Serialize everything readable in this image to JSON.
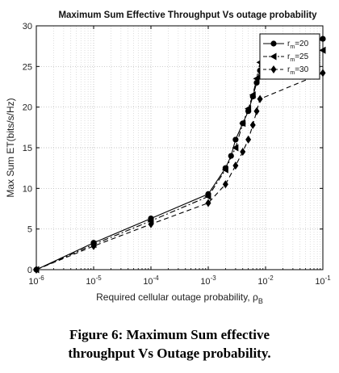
{
  "chart_data": {
    "type": "line",
    "title": "Maximum Sum Effective Throughput Vs outage probability",
    "xlabel": "Required cellular outage probability, ρ",
    "xlabel_sub": "B",
    "ylabel": "Max Sum ET(bits/s/Hz)",
    "xscale": "log",
    "xlim": [
      1e-06,
      0.1
    ],
    "ylim": [
      0,
      30
    ],
    "x_ticks": [
      {
        "value": 1e-06,
        "base": "10",
        "exp": "-6"
      },
      {
        "value": 1e-05,
        "base": "10",
        "exp": "-5"
      },
      {
        "value": 0.0001,
        "base": "10",
        "exp": "-4"
      },
      {
        "value": 0.001,
        "base": "10",
        "exp": "-3"
      },
      {
        "value": 0.01,
        "base": "10",
        "exp": "-2"
      },
      {
        "value": 0.1,
        "base": "10",
        "exp": "-1"
      }
    ],
    "y_ticks": [
      0,
      5,
      10,
      15,
      20,
      25,
      30
    ],
    "grid": true,
    "legend_position": "top-right",
    "series": [
      {
        "name": "r_m=20",
        "label_main": "r",
        "label_sub": "m",
        "label_rest": "=20",
        "marker": "circle",
        "dash": "solid",
        "x": [
          1e-06,
          1e-05,
          0.0001,
          0.001,
          0.002,
          0.0025,
          0.003,
          0.004,
          0.005,
          0.006,
          0.007,
          0.008,
          0.1
        ],
        "y": [
          0,
          3.3,
          6.3,
          9.3,
          12.5,
          14.0,
          16.0,
          18.0,
          19.5,
          21.3,
          23.0,
          24.5,
          28.4
        ]
      },
      {
        "name": "r_m=25",
        "label_main": "r",
        "label_sub": "m",
        "label_rest": "=25",
        "marker": "triangle-left",
        "dash": "dashdot",
        "x": [
          1e-06,
          1e-05,
          0.0001,
          0.001,
          0.002,
          0.003,
          0.004,
          0.005,
          0.006,
          0.007,
          0.008,
          0.1
        ],
        "y": [
          0,
          3.1,
          6.0,
          9.0,
          12.3,
          15.0,
          18.0,
          19.8,
          21.5,
          23.5,
          25.5,
          27.0
        ]
      },
      {
        "name": "r_m=30",
        "label_main": "r",
        "label_sub": "m",
        "label_rest": "=30",
        "marker": "diamond",
        "dash": "dashed",
        "x": [
          1e-06,
          1e-05,
          0.0001,
          0.001,
          0.002,
          0.003,
          0.004,
          0.005,
          0.006,
          0.007,
          0.008,
          0.1
        ],
        "y": [
          0,
          2.9,
          5.6,
          8.2,
          10.5,
          12.8,
          14.5,
          16.0,
          17.8,
          19.5,
          21.0,
          24.2
        ]
      }
    ]
  },
  "caption": {
    "line1": "Figure 6: Maximum Sum effective",
    "line2": "throughput Vs Outage probability."
  }
}
